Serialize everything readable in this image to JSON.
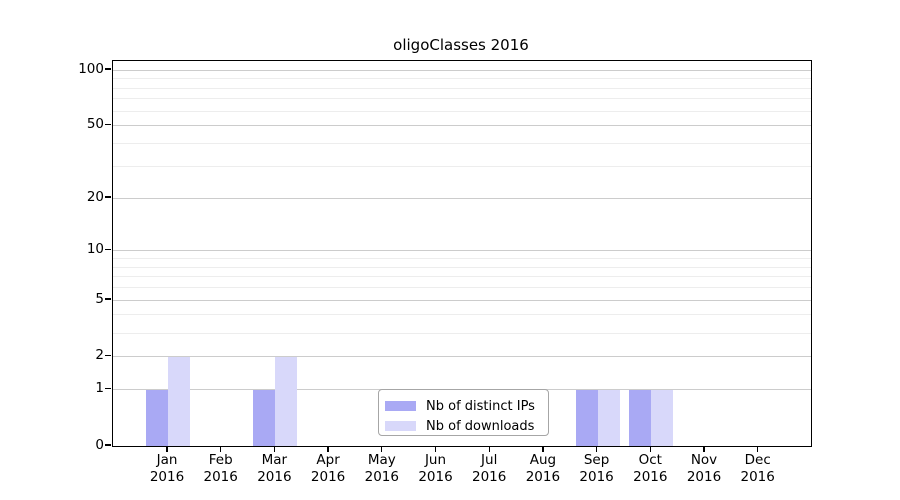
{
  "chart_data": {
    "type": "bar",
    "title": "oligoClasses 2016",
    "year_label": "2016",
    "categories": [
      "Jan",
      "Feb",
      "Mar",
      "Apr",
      "May",
      "Jun",
      "Jul",
      "Aug",
      "Sep",
      "Oct",
      "Nov",
      "Dec"
    ],
    "series": [
      {
        "name": "Nb of distinct IPs",
        "color": "#a9a9f4",
        "values": [
          1,
          0,
          1,
          0,
          0,
          0,
          0,
          0,
          1,
          1,
          0,
          0
        ]
      },
      {
        "name": "Nb of downloads",
        "color": "#d8d8fa",
        "values": [
          2,
          0,
          2,
          0,
          0,
          0,
          0,
          0,
          1,
          1,
          0,
          0
        ]
      }
    ],
    "yscale": "log1p",
    "ylim": [
      0,
      112
    ],
    "yticks": [
      0,
      1,
      2,
      5,
      10,
      20,
      50,
      100
    ],
    "yticks_minor": [
      3,
      4,
      6,
      7,
      8,
      9,
      30,
      40,
      60,
      70,
      80,
      90
    ],
    "grid": true,
    "legend_position": "lower center",
    "colors": {
      "axis": "#000000",
      "grid_major": "#cccccc",
      "grid_minor": "#ededed",
      "legend_border": "#a6a6a6",
      "text": "#000000",
      "background": "#ffffff"
    }
  }
}
